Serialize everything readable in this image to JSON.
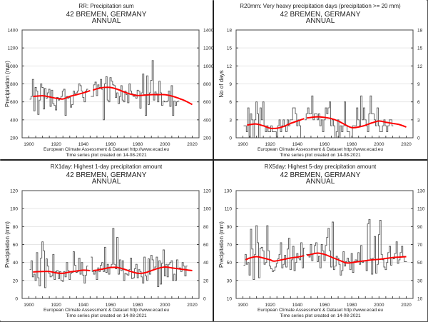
{
  "chart_data": [
    {
      "type": "line",
      "index_title": "RR: Precipitation sum",
      "station": "42 BREMEN, GERMANY",
      "period": "ANNUAL",
      "xlabel": "",
      "ylabel": "Precipitation (mm)",
      "xlim": [
        1895,
        2025
      ],
      "ylim": [
        200,
        1400
      ],
      "yticks": [
        200,
        400,
        600,
        800,
        1000,
        1200,
        1400
      ],
      "xticks": [
        1900,
        1920,
        1940,
        1960,
        1980,
        2000,
        2020
      ],
      "grid": true,
      "footer": [
        "European Climate Assessment & Dataset  http://www.ecad.eu",
        "Time series plot created on 14-08-2021"
      ],
      "series": [
        {
          "name": "annual",
          "style": "step",
          "x_start": 1901,
          "values": [
            630,
            660,
            850,
            500,
            760,
            720,
            460,
            620,
            800,
            760,
            520,
            750,
            640,
            700,
            740,
            550,
            730,
            580,
            560,
            510,
            650,
            620,
            640,
            660,
            720,
            740,
            450,
            660,
            640,
            650,
            540,
            570,
            720,
            690,
            700,
            720,
            800,
            780,
            720,
            650,
            600,
            720,
            740,
            null,
            null,
            660,
            660,
            790,
            820,
            670,
            790,
            760,
            850,
            740,
            400,
            800,
            880,
            620,
            600,
            870,
            830,
            790,
            780,
            650,
            700,
            580,
            660,
            780,
            620,
            600,
            720,
            680,
            590,
            800,
            720,
            690,
            660,
            680,
            640,
            730,
            720,
            530,
            700,
            910,
            680,
            450,
            890,
            570,
            700,
            840,
            1060,
            620,
            710,
            690,
            600,
            830,
            700,
            560,
            610,
            600,
            600,
            610,
            720,
            550,
            780,
            450,
            610,
            560,
            600,
            610
          ]
        },
        {
          "name": "smoothed trend",
          "style": "smooth",
          "color": "#ff0000",
          "x": [
            1903,
            1910,
            1915,
            1920,
            1925,
            1930,
            1935,
            1940,
            1945,
            1947,
            1950,
            1955,
            1960,
            1965,
            1970,
            1975,
            1980,
            1985,
            1990,
            1995,
            2000,
            2005,
            2010,
            2015,
            2020
          ],
          "values": [
            660,
            668,
            655,
            640,
            632,
            660,
            680,
            700,
            725,
            730,
            745,
            760,
            760,
            740,
            710,
            685,
            670,
            675,
            680,
            680,
            680,
            665,
            640,
            610,
            570
          ]
        }
      ]
    },
    {
      "type": "line",
      "index_title": "R20mm: Very heavy precipitation days (precipitation >= 20 mm)",
      "station": "42 BREMEN, GERMANY",
      "period": "ANNUAL",
      "xlabel": "",
      "ylabel": "No of days",
      "xlim": [
        1895,
        2025
      ],
      "ylim": [
        0,
        18
      ],
      "yticks": [
        0,
        3,
        6,
        9,
        12,
        15,
        18
      ],
      "xticks": [
        1900,
        1920,
        1940,
        1960,
        1980,
        2000,
        2020
      ],
      "grid": true,
      "footer": [
        "European Climate Assessment & Dataset  http://www.ecad.eu",
        "Time series plot created on 14-08-2021"
      ],
      "series": [
        {
          "name": "annual",
          "style": "step",
          "x_start": 1901,
          "values": [
            2,
            2,
            1,
            5,
            0,
            4,
            3,
            0,
            3,
            6,
            4,
            0,
            5,
            3,
            6,
            2,
            1,
            2,
            1,
            1,
            2,
            1,
            1,
            1,
            0,
            2,
            3,
            1,
            2,
            3,
            2,
            1,
            3,
            2,
            3,
            3,
            5,
            5,
            4,
            2,
            3,
            2,
            0,
            null,
            null,
            3,
            4,
            5,
            4,
            4,
            7,
            3,
            4,
            4,
            3,
            4,
            2,
            3,
            1,
            3,
            5,
            4,
            5,
            6,
            2,
            3,
            2,
            0,
            1,
            3,
            0,
            2,
            1,
            2,
            6,
            2,
            1,
            1,
            0,
            0,
            2,
            2,
            2,
            5,
            3,
            2,
            7,
            3,
            5,
            3,
            2,
            1,
            4,
            7,
            4,
            4,
            3,
            2,
            5,
            2,
            1,
            1,
            2,
            3,
            2,
            1,
            2,
            3,
            3,
            2
          ]
        },
        {
          "name": "smoothed trend",
          "style": "smooth",
          "color": "#ff0000",
          "x": [
            1903,
            1905,
            1910,
            1915,
            1920,
            1925,
            1930,
            1935,
            1940,
            1945,
            1947,
            1950,
            1955,
            1960,
            1965,
            1970,
            1975,
            1980,
            1985,
            1990,
            1995,
            2000,
            2005,
            2010,
            2015,
            2020
          ],
          "values": [
            2.1,
            2.2,
            2.3,
            2.0,
            1.6,
            1.6,
            1.9,
            2.4,
            2.8,
            3.2,
            3.3,
            3.4,
            3.5,
            3.4,
            3.2,
            2.8,
            2.2,
            1.7,
            1.8,
            2.1,
            2.5,
            2.8,
            2.6,
            2.4,
            2.2,
            1.8
          ]
        }
      ]
    },
    {
      "type": "line",
      "index_title": "RX1day: Highest 1-day precipitation amount",
      "station": "42 BREMEN, GERMANY",
      "period": "ANNUAL",
      "xlabel": "",
      "ylabel": "Precipitation (mm)",
      "xlim": [
        1895,
        2025
      ],
      "ylim": [
        0,
        120
      ],
      "yticks": [
        0,
        20,
        40,
        60,
        80,
        100,
        120
      ],
      "xticks": [
        1900,
        1920,
        1940,
        1960,
        1980,
        2000,
        2020
      ],
      "grid": true,
      "footer": [
        "European Climate Assessment & Dataset  http://www.ecad.eu",
        "Time series plot created on 14-08-2021"
      ],
      "series": [
        {
          "name": "annual",
          "style": "step",
          "x_start": 1901,
          "values": [
            32,
            42,
            24,
            27,
            20,
            51,
            23,
            14,
            45,
            63,
            53,
            12,
            44,
            36,
            28,
            24,
            25,
            49,
            21,
            30,
            31,
            22,
            30,
            20,
            19,
            30,
            24,
            40,
            31,
            21,
            28,
            29,
            52,
            37,
            29,
            30,
            45,
            27,
            40,
            26,
            17,
            26,
            36,
            null,
            null,
            46,
            30,
            27,
            30,
            21,
            34,
            30,
            37,
            40,
            30,
            57,
            29,
            38,
            27,
            35,
            38,
            78,
            38,
            33,
            68,
            27,
            43,
            31,
            42,
            20,
            28,
            27,
            26,
            32,
            45,
            22,
            23,
            33,
            38,
            23,
            32,
            30,
            24,
            17,
            46,
            25,
            20,
            44,
            27,
            48,
            43,
            32,
            35,
            46,
            13,
            42,
            16,
            39,
            54,
            25,
            38,
            24,
            38,
            40,
            42,
            20,
            27,
            20,
            43,
            33,
            34,
            30,
            40,
            36,
            25,
            36
          ]
        },
        {
          "name": "smoothed trend",
          "style": "smooth",
          "color": "#ff0000",
          "x": [
            1903,
            1910,
            1915,
            1920,
            1925,
            1930,
            1935,
            1940,
            1945,
            1947,
            1950,
            1955,
            1960,
            1965,
            1970,
            1975,
            1980,
            1985,
            1990,
            1995,
            2000,
            2005,
            2010,
            2015,
            2020
          ],
          "values": [
            29.5,
            30,
            30,
            28.5,
            28,
            29.5,
            30.5,
            31.5,
            31,
            31,
            31.5,
            33,
            34.5,
            34.5,
            32.5,
            30,
            28,
            28.5,
            31,
            33.5,
            35,
            34,
            33,
            32,
            31
          ]
        }
      ]
    },
    {
      "type": "line",
      "index_title": "RX5day: Highest 5-day precipitation amount",
      "station": "42 BREMEN, GERMANY",
      "period": "ANNUAL",
      "xlabel": "",
      "ylabel": "Precipitation (mm)",
      "xlim": [
        1895,
        2025
      ],
      "ylim": [
        10,
        130
      ],
      "yticks": [
        10,
        30,
        50,
        70,
        90,
        110,
        130
      ],
      "xticks": [
        1900,
        1920,
        1940,
        1960,
        1980,
        2000,
        2020
      ],
      "grid": true,
      "footer": [
        "European Climate Assessment & Dataset  http://www.ecad.eu",
        "Time series plot created on 14-08-2021"
      ],
      "series": [
        {
          "name": "annual",
          "style": "step",
          "x_start": 1901,
          "values": [
            47,
            59,
            48,
            50,
            36,
            87,
            65,
            31,
            59,
            91,
            72,
            33,
            66,
            67,
            63,
            48,
            50,
            91,
            63,
            46,
            43,
            40,
            41,
            45,
            49,
            54,
            59,
            72,
            44,
            48,
            58,
            45,
            65,
            77,
            42,
            53,
            68,
            41,
            50,
            60,
            55,
            53,
            72,
            44,
            66,
            null,
            59,
            59,
            56,
            70,
            52,
            60,
            69,
            72,
            51,
            57,
            44,
            70,
            63,
            52,
            69,
            78,
            88,
            63,
            45,
            95,
            42,
            46,
            57,
            55,
            48,
            36,
            41,
            62,
            46,
            51,
            55,
            51,
            42,
            60,
            39,
            51,
            53,
            52,
            61,
            48,
            69,
            50,
            52,
            52,
            41,
            93,
            98,
            54,
            37,
            55,
            79,
            38,
            48,
            81,
            97,
            59,
            53,
            45,
            42,
            50,
            61,
            68,
            47,
            55,
            54,
            60,
            73,
            49,
            53,
            61,
            68,
            57,
            51,
            51
          ]
        },
        {
          "name": "smoothed trend",
          "style": "smooth",
          "color": "#ff0000",
          "x": [
            1902,
            1905,
            1910,
            1915,
            1920,
            1923,
            1930,
            1935,
            1940,
            1945,
            1947,
            1950,
            1955,
            1960,
            1965,
            1970,
            1975,
            1978,
            1985,
            1990,
            1995,
            2000,
            2005,
            2010,
            2015,
            2020
          ],
          "values": [
            53,
            55,
            56.5,
            55,
            53,
            51.5,
            53.5,
            55,
            56,
            57.5,
            58,
            59,
            60.5,
            59,
            56,
            53,
            50,
            49.5,
            51,
            52,
            53,
            53.5,
            54.5,
            55.5,
            56,
            56.5
          ]
        }
      ]
    }
  ]
}
